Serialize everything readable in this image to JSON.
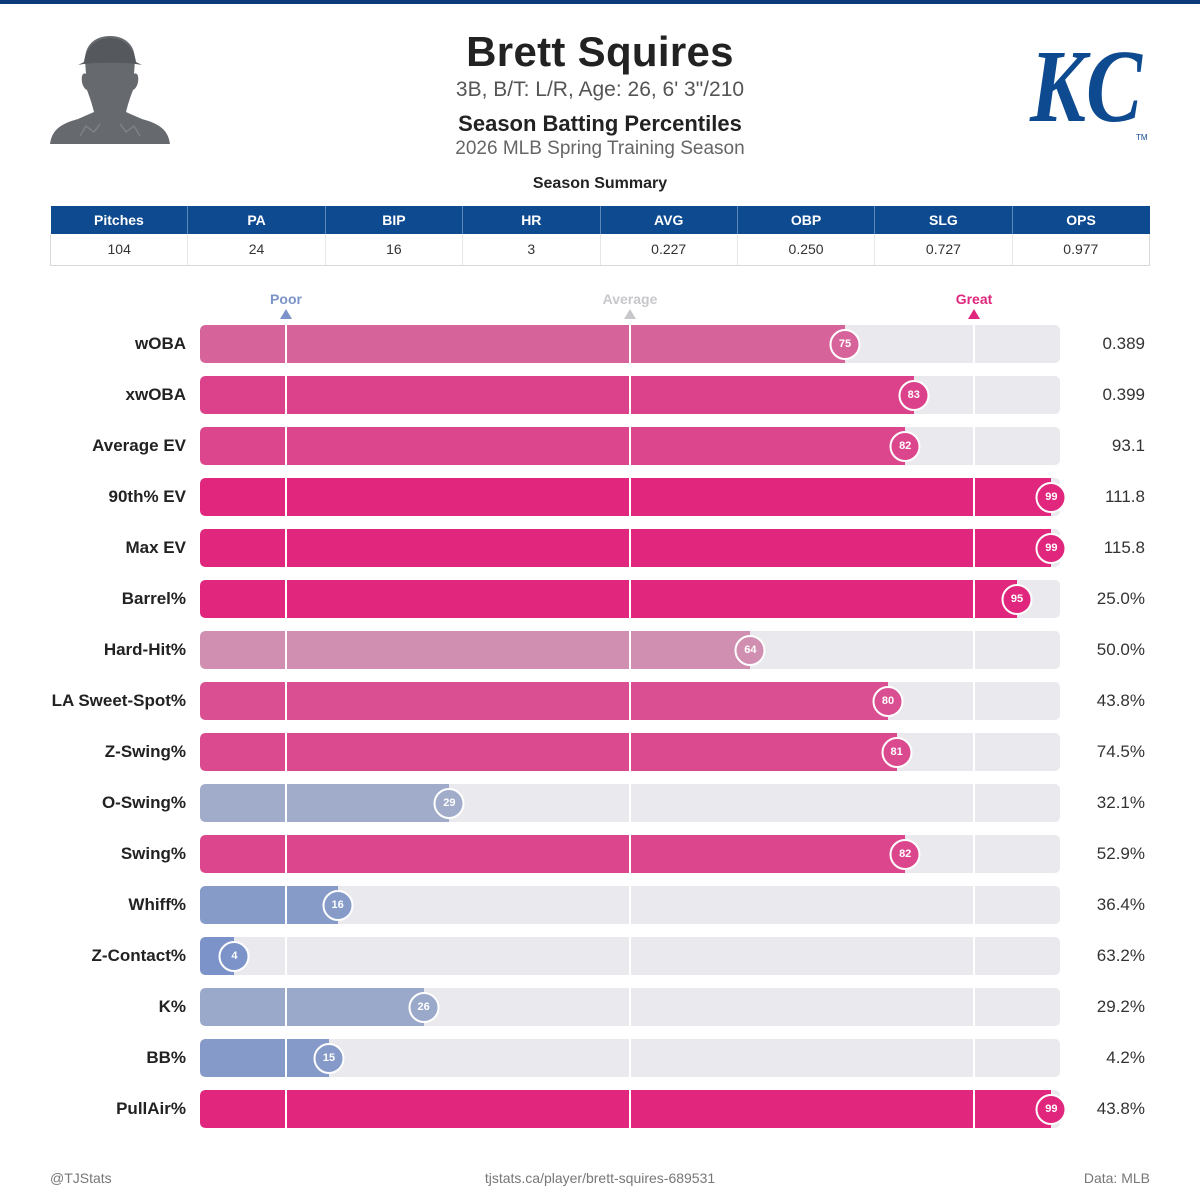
{
  "player": {
    "name": "Brett Squires",
    "bio": "3B, B/T: L/R, Age: 26, 6' 3\"/210",
    "heading": "Season Batting Percentiles",
    "season": "2026 MLB Spring Training Season",
    "logo_text": "KC",
    "logo_tm": "TM"
  },
  "colors": {
    "header_blue": "#0d4a8f",
    "poor": "#7b93c9",
    "average": "#c8c8cc",
    "great": "#e0267d",
    "track": "#e9e9ee"
  },
  "summary": {
    "title": "Season Summary",
    "headers": [
      "Pitches",
      "PA",
      "BIP",
      "HR",
      "AVG",
      "OBP",
      "SLG",
      "OPS"
    ],
    "values": [
      "104",
      "24",
      "16",
      "3",
      "0.227",
      "0.250",
      "0.727",
      "0.977"
    ]
  },
  "legend": {
    "poor": "Poor",
    "average": "Average",
    "great": "Great"
  },
  "chart_data": {
    "type": "bar",
    "orientation": "horizontal",
    "xlim": [
      0,
      100
    ],
    "reference_lines": [
      10,
      50,
      90
    ],
    "categories": [
      "wOBA",
      "xwOBA",
      "Average EV",
      "90th% EV",
      "Max EV",
      "Barrel%",
      "Hard-Hit%",
      "LA Sweet-Spot%",
      "Z-Swing%",
      "O-Swing%",
      "Swing%",
      "Whiff%",
      "Z-Contact%",
      "K%",
      "BB%",
      "PullAir%"
    ],
    "percentiles": [
      75,
      83,
      82,
      99,
      99,
      95,
      64,
      80,
      81,
      29,
      82,
      16,
      4,
      26,
      15,
      99
    ],
    "stat_values": [
      "0.389",
      "0.399",
      "93.1",
      "111.8",
      "115.8",
      "25.0%",
      "50.0%",
      "43.8%",
      "74.5%",
      "32.1%",
      "52.9%",
      "36.4%",
      "63.2%",
      "29.2%",
      "4.2%",
      "43.8%"
    ]
  },
  "footer": {
    "left": "@TJStats",
    "center": "tjstats.ca/player/brett-squires-689531",
    "right": "Data: MLB"
  }
}
